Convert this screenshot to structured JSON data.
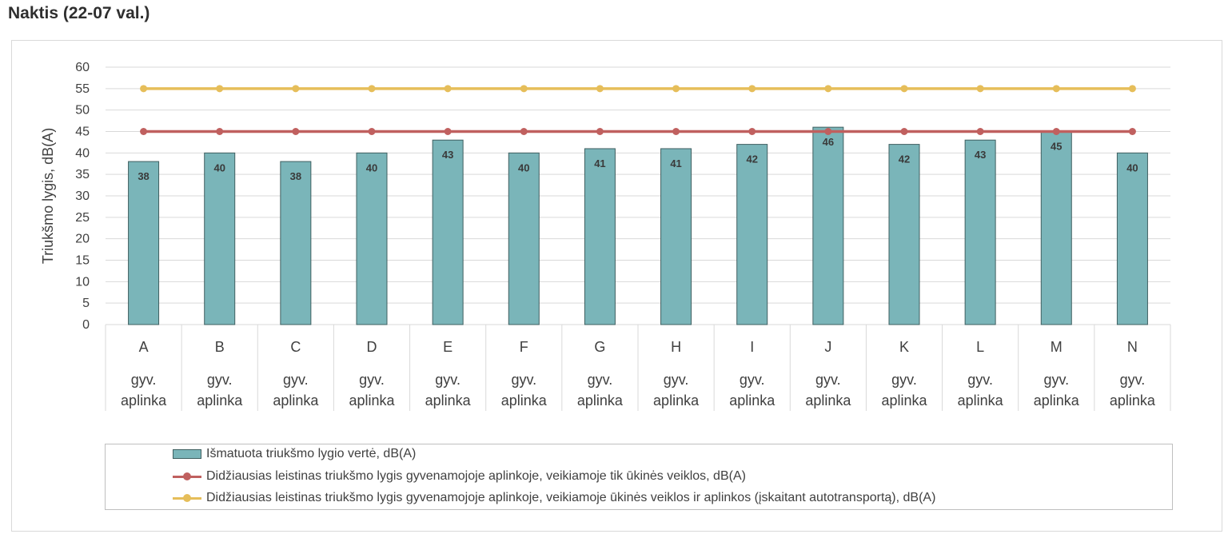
{
  "page": {
    "title": "Naktis (22-07 val.)"
  },
  "colors": {
    "bar": "#7ab5b9",
    "bar_border": "#3f5f60",
    "line1": "#c0605f",
    "line2": "#e6be5a",
    "grid": "#d9d9d9",
    "text": "#404040"
  },
  "chart_data": {
    "type": "bar",
    "ylabel": "Triukšmo lygis, dB(A)",
    "ylim": [
      0,
      60
    ],
    "yticks": [
      0,
      5,
      10,
      15,
      20,
      25,
      30,
      35,
      40,
      45,
      50,
      55,
      60
    ],
    "grid": true,
    "legend_position": "bottom",
    "categories": [
      "A",
      "B",
      "C",
      "D",
      "E",
      "F",
      "G",
      "H",
      "I",
      "J",
      "K",
      "L",
      "M",
      "N"
    ],
    "category_sublabel": [
      "gyv.",
      "aplinka"
    ],
    "series": [
      {
        "name": "Išmatuota triukšmo lygio vertė, dB(A)",
        "type": "bar",
        "values": [
          38,
          40,
          38,
          40,
          43,
          40,
          41,
          41,
          42,
          46,
          42,
          43,
          45,
          40
        ]
      },
      {
        "name": "Didžiausias leistinas triukšmo lygis gyvenamojoje aplinkoje, veikiamoje tik ūkinės veiklos,  dB(A)",
        "type": "line",
        "values": [
          45,
          45,
          45,
          45,
          45,
          45,
          45,
          45,
          45,
          45,
          45,
          45,
          45,
          45
        ]
      },
      {
        "name": "Didžiausias leistinas triukšmo lygis gyvenamojoje aplinkoje, veikiamoje ūkinės veiklos ir aplinkos (įskaitant autotransportą),  dB(A)",
        "type": "line",
        "values": [
          55,
          55,
          55,
          55,
          55,
          55,
          55,
          55,
          55,
          55,
          55,
          55,
          55,
          55
        ]
      }
    ]
  }
}
